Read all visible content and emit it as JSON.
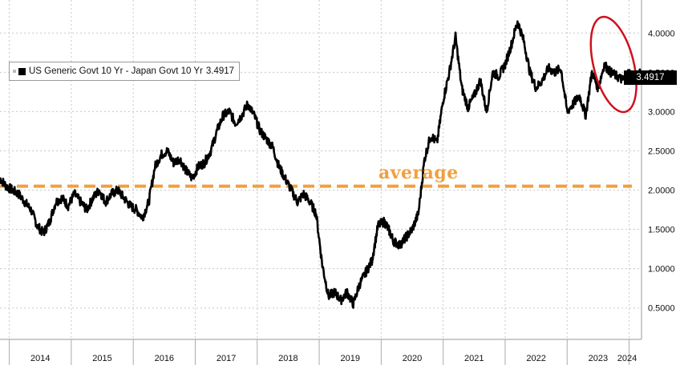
{
  "chart_data": {
    "type": "line",
    "legend": {
      "label": "US Generic Govt 10 Yr - Japan Govt 10 Yr",
      "last_value": "3.4917"
    },
    "last_value_tag": "3.4917",
    "average": {
      "label": "average",
      "value": 2.05
    },
    "ylim": [
      0.1,
      4.4
    ],
    "y_ticks": [
      "4.0000",
      "3.5000",
      "3.0000",
      "2.5000",
      "2.0000",
      "1.5000",
      "1.0000",
      "0.5000"
    ],
    "y_tick_values": [
      4.0,
      3.5,
      3.0,
      2.5,
      2.0,
      1.5,
      1.0,
      0.5
    ],
    "x_ticks": [
      "2014",
      "2015",
      "2016",
      "2017",
      "2018",
      "2019",
      "2020",
      "2021",
      "2022",
      "2023",
      "2024"
    ],
    "x_tick_values": [
      2014.0,
      2015.0,
      2016.0,
      2017.0,
      2018.0,
      2019.0,
      2020.0,
      2021.0,
      2022.0,
      2023.0,
      2024.0
    ],
    "xlim": [
      2013.85,
      2024.2
    ],
    "grid": true,
    "annotation": {
      "type": "ellipse",
      "color": "#d0101e",
      "x_center": 2023.75,
      "y_center": 3.6
    },
    "series": [
      {
        "color": "#000000",
        "x": [
          2013.85,
          2013.95,
          2014.05,
          2014.15,
          2014.25,
          2014.35,
          2014.45,
          2014.55,
          2014.65,
          2014.75,
          2014.85,
          2014.95,
          2015.05,
          2015.15,
          2015.25,
          2015.35,
          2015.45,
          2015.55,
          2015.65,
          2015.75,
          2015.85,
          2015.95,
          2016.05,
          2016.15,
          2016.25,
          2016.35,
          2016.45,
          2016.55,
          2016.65,
          2016.75,
          2016.85,
          2016.95,
          2017.05,
          2017.15,
          2017.25,
          2017.35,
          2017.45,
          2017.55,
          2017.65,
          2017.75,
          2017.85,
          2017.95,
          2018.05,
          2018.15,
          2018.25,
          2018.35,
          2018.45,
          2018.55,
          2018.65,
          2018.75,
          2018.85,
          2018.95,
          2019.05,
          2019.15,
          2019.25,
          2019.35,
          2019.45,
          2019.55,
          2019.65,
          2019.75,
          2019.85,
          2019.95,
          2020.05,
          2020.12,
          2020.2,
          2020.3,
          2020.4,
          2020.5,
          2020.6,
          2020.7,
          2020.8,
          2020.9,
          2021.0,
          2021.1,
          2021.2,
          2021.3,
          2021.4,
          2021.5,
          2021.6,
          2021.7,
          2021.8,
          2021.9,
          2022.0,
          2022.1,
          2022.2,
          2022.3,
          2022.4,
          2022.5,
          2022.6,
          2022.7,
          2022.8,
          2022.9,
          2023.0,
          2023.1,
          2023.2,
          2023.3,
          2023.4,
          2023.5,
          2023.6,
          2023.7,
          2023.8,
          2023.9,
          2024.0,
          2024.1,
          2024.18
        ],
        "y": [
          2.15,
          2.05,
          2.0,
          1.95,
          1.85,
          1.75,
          1.55,
          1.45,
          1.6,
          1.85,
          1.9,
          1.8,
          1.95,
          1.85,
          1.75,
          1.9,
          2.0,
          1.85,
          1.95,
          2.0,
          1.9,
          1.8,
          1.75,
          1.65,
          1.85,
          2.3,
          2.45,
          2.5,
          2.35,
          2.4,
          2.25,
          2.15,
          2.3,
          2.35,
          2.5,
          2.75,
          2.95,
          3.0,
          2.85,
          2.95,
          3.1,
          2.95,
          2.75,
          2.65,
          2.55,
          2.3,
          2.15,
          2.0,
          1.85,
          1.95,
          1.85,
          1.7,
          1.05,
          0.65,
          0.7,
          0.6,
          0.7,
          0.55,
          0.8,
          0.95,
          1.1,
          1.55,
          1.6,
          1.5,
          1.35,
          1.3,
          1.4,
          1.5,
          1.7,
          2.4,
          2.7,
          2.6,
          3.15,
          3.5,
          3.95,
          3.3,
          3.05,
          3.2,
          3.4,
          3.0,
          3.5,
          3.45,
          3.6,
          3.85,
          4.15,
          3.9,
          3.5,
          3.3,
          3.4,
          3.55,
          3.5,
          3.55,
          3.0,
          3.1,
          3.2,
          2.95,
          3.5,
          3.3,
          3.6,
          3.5,
          3.45,
          3.4,
          3.5,
          3.4,
          3.49
        ]
      }
    ]
  }
}
